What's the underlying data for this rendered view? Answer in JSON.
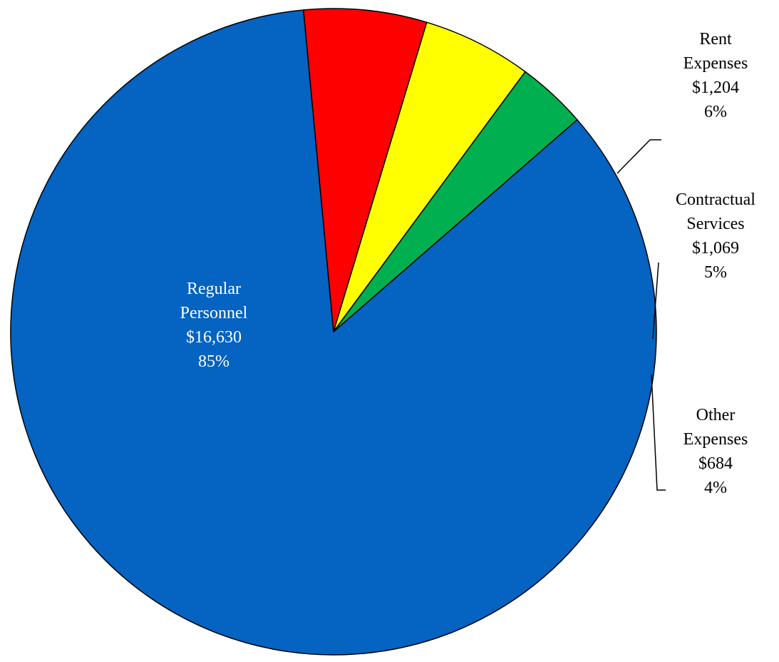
{
  "chart_data": {
    "type": "pie",
    "slices": [
      {
        "label": "Regular Personnel",
        "label_lines": [
          "Regular",
          "Personnel"
        ],
        "value": 16630,
        "value_text": "$16,630",
        "percent_text": "85%",
        "color": "#0563C1",
        "label_color": "#ffffff"
      },
      {
        "label": "Rent Expenses",
        "label_lines": [
          "Rent",
          "Expenses"
        ],
        "value": 1204,
        "value_text": "$1,204",
        "percent_text": "6%",
        "color": "#FF0000",
        "label_color": "#000000"
      },
      {
        "label": "Contractual Services",
        "label_lines": [
          "Contractual",
          "Services"
        ],
        "value": 1069,
        "value_text": "$1,069",
        "percent_text": "5%",
        "color": "#FFFF00",
        "label_color": "#000000"
      },
      {
        "label": "Other Expenses",
        "label_lines": [
          "Other",
          "Expenses"
        ],
        "value": 684,
        "value_text": "$684",
        "percent_text": "4%",
        "color": "#00B050",
        "label_color": "#000000"
      }
    ]
  }
}
